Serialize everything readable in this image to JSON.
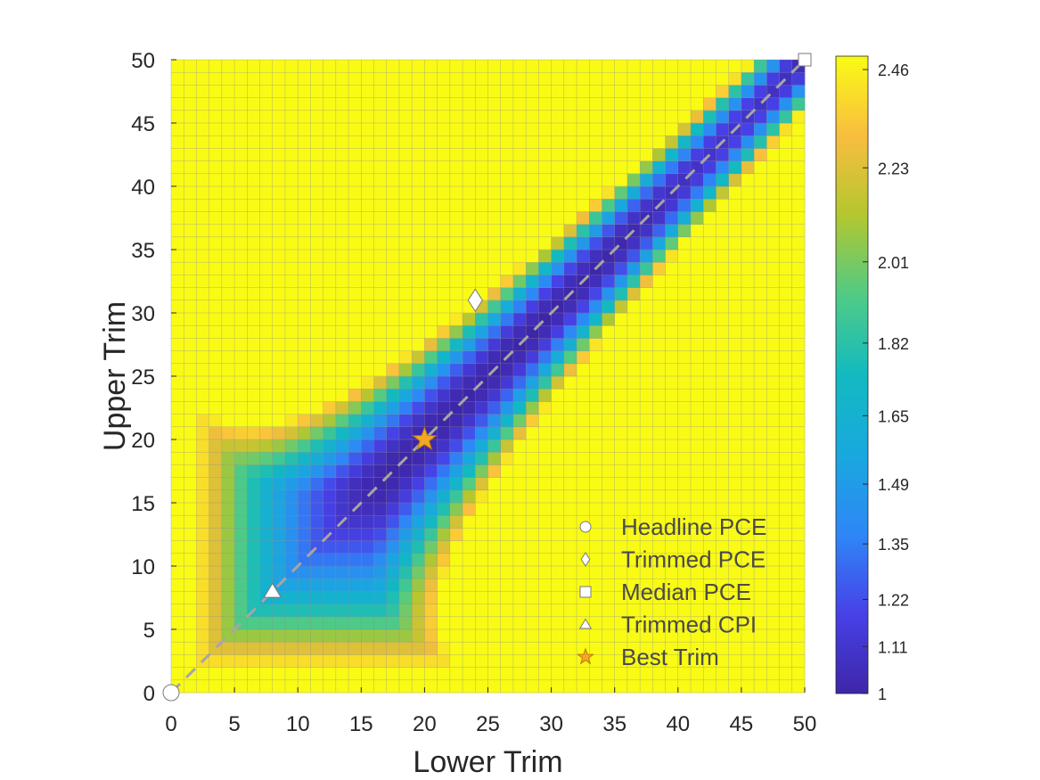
{
  "chart_data": {
    "type": "heatmap",
    "title": "",
    "xlabel": "Lower Trim",
    "ylabel": "Upper Trim",
    "xlim": [
      0,
      50
    ],
    "ylim": [
      0,
      50
    ],
    "xticks": [
      "0",
      "5",
      "10",
      "15",
      "20",
      "25",
      "30",
      "35",
      "40",
      "45",
      "50"
    ],
    "yticks": [
      "0",
      "5",
      "10",
      "15",
      "20",
      "25",
      "30",
      "35",
      "40",
      "45",
      "50"
    ],
    "grid_resolution": 50,
    "value_range": [
      1,
      2.46
    ],
    "colorbar": {
      "colormap": "parula",
      "ticks": [
        "2.46",
        "2.23",
        "2.01",
        "1.82",
        "1.65",
        "1.49",
        "1.35",
        "1.22",
        "1.11",
        "1"
      ]
    },
    "diagonal_reference_line": {
      "from": [
        0,
        0
      ],
      "to": [
        50,
        50
      ],
      "style": "dashed",
      "color": "#a6a6a6"
    },
    "markers": [
      {
        "name": "Headline PCE",
        "symbol": "circle",
        "x": 0,
        "y": 0,
        "color": "#ffffff"
      },
      {
        "name": "Trimmed PCE",
        "symbol": "diamond",
        "x": 24,
        "y": 31,
        "color": "#ffffff"
      },
      {
        "name": "Median PCE",
        "symbol": "square",
        "x": 50,
        "y": 50,
        "color": "#ffffff"
      },
      {
        "name": "Trimmed CPI",
        "symbol": "triangle",
        "x": 8,
        "y": 8,
        "color": "#ffffff"
      },
      {
        "name": "Best Trim",
        "symbol": "star",
        "x": 20,
        "y": 20,
        "color": "#f5a623"
      }
    ],
    "legend": {
      "placement": "bottom-right",
      "entries": [
        "Headline PCE",
        "Trimmed PCE",
        "Median PCE",
        "Trimmed CPI",
        "Best Trim"
      ]
    }
  }
}
